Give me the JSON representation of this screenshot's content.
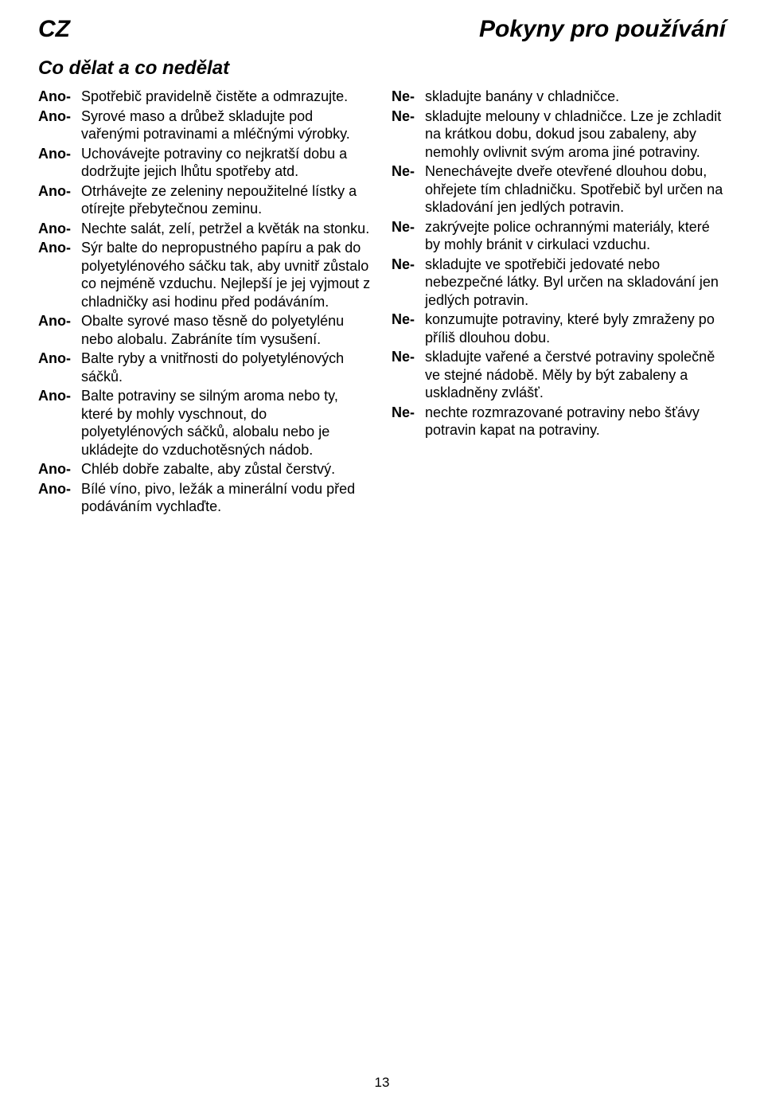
{
  "header": {
    "lang": "CZ",
    "title": "Pokyny pro používání"
  },
  "section_title": "Co dělat a co nedělat",
  "page_number": "13",
  "left_prefix": "Ano-",
  "right_prefix": "Ne-",
  "colors": {
    "text": "#000000",
    "background": "#ffffff"
  },
  "left_items": [
    "Spotřebič pravidelně čistěte a odmrazujte.",
    "Syrové maso a drůbež skladujte pod vařenými potravinami a mléčnými výrobky.",
    "Uchovávejte potraviny co nejkratší dobu a dodržujte jejich lhůtu spotřeby atd.",
    "Otrhávejte ze zeleniny nepoužitelné lístky a otírejte přebytečnou zeminu.",
    "Nechte salát, zelí, petržel a květák na stonku.",
    "Sýr balte do nepropustného papíru a pak do polyetylénového sáčku tak, aby uvnitř zůstalo co nejméně vzduchu. Nejlepší je jej vyjmout z chladničky asi hodinu před podáváním.",
    "Obalte syrové maso těsně do polyetylénu nebo alobalu. Zabráníte tím vysušení.",
    "Balte ryby a vnitřnosti do polyetylénových sáčků.",
    "Balte potraviny se silným aroma nebo ty, které by mohly vyschnout, do polyetylénových sáčků, alobalu nebo je ukládejte do vzduchotěsných nádob.",
    "Chléb dobře zabalte, aby zůstal čerstvý.",
    "Bílé víno, pivo, ležák a minerální vodu před podáváním vychlaďte."
  ],
  "right_items": [
    "skladujte banány v chladničce.",
    "skladujte melouny v chladničce. Lze je zchladit na krátkou dobu, dokud jsou zabaleny, aby nemohly ovlivnit svým aroma jiné potraviny.",
    "Nenechávejte dveře otevřené dlouhou dobu, ohřejete tím chladničku. Spotřebič byl určen na skladování jen jedlých potravin.",
    "zakrývejte police ochrannými materiály, které by mohly bránit v cirkulaci vzduchu.",
    "skladujte ve spotřebiči jedovaté nebo nebezpečné látky. Byl určen na skladování jen jedlých potravin.",
    "konzumujte potraviny, které byly zmraženy po příliš dlouhou dobu.",
    "skladujte vařené a čerstvé potraviny společně ve stejné nádobě. Měly by být zabaleny a uskladněny zvlášť.",
    "nechte rozmrazované potraviny nebo šťávy potravin kapat na potraviny."
  ]
}
